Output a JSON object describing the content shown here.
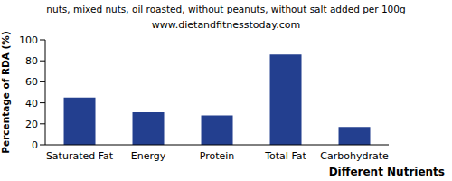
{
  "chart_data": {
    "type": "bar",
    "title": "nuts, mixed nuts, oil roasted, without peanuts, without salt added per 100g",
    "subtitle": "www.dietandfitnesstoday.com",
    "x_label": "Different Nutrients",
    "y_label": "Percentage of RDA (%)",
    "categories": [
      "Saturated Fat",
      "Energy",
      "Protein",
      "Total Fat",
      "Carbohydrate"
    ],
    "values": [
      45,
      31,
      28,
      86,
      17
    ],
    "color": "#233f8f",
    "ylim": [
      0,
      100
    ],
    "yticks": [
      0,
      20,
      40,
      60,
      80,
      100
    ],
    "grid": false
  }
}
